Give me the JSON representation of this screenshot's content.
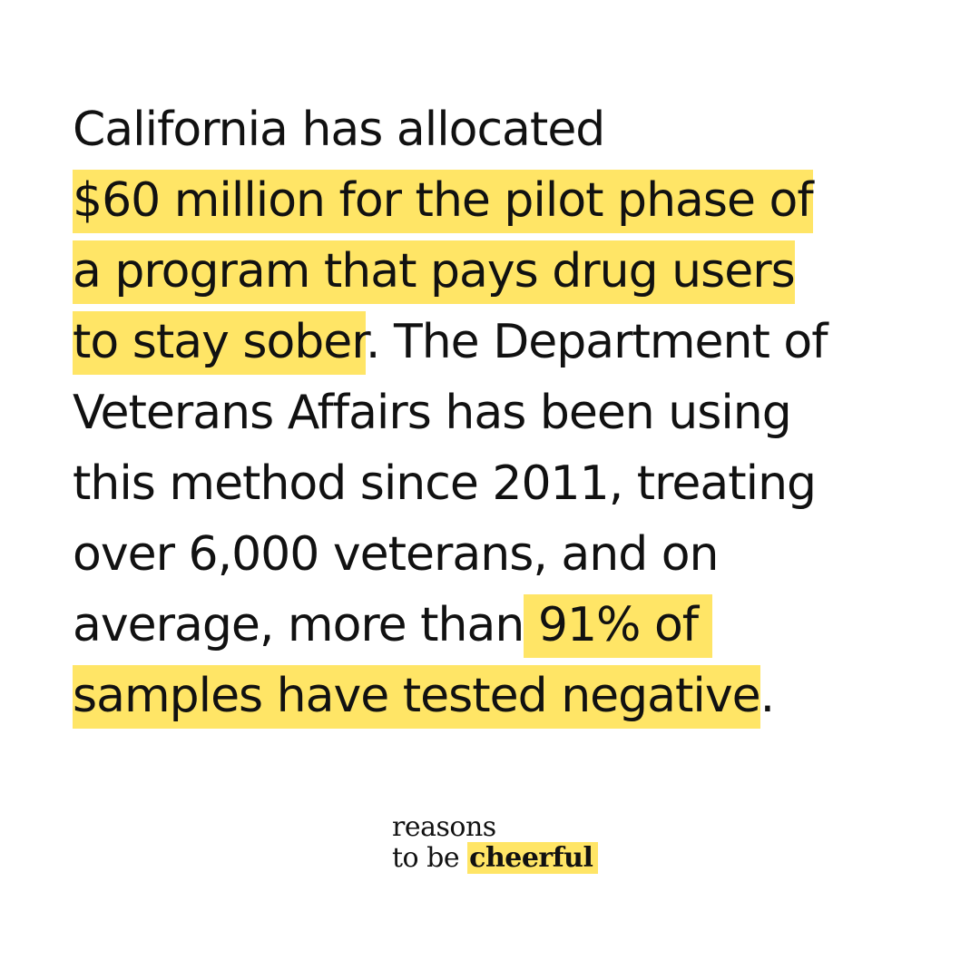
{
  "colors": {
    "background": "#ffffff",
    "text": "#111111",
    "highlight": "#ffe566"
  },
  "body": {
    "lines": [
      {
        "segments": [
          {
            "text": "California has allocated",
            "highlight": false
          }
        ]
      },
      {
        "segments": [
          {
            "text": "$60 million for the pilot phase of",
            "highlight": true
          }
        ]
      },
      {
        "segments": [
          {
            "text": "a program that pays drug users",
            "highlight": true
          }
        ]
      },
      {
        "segments": [
          {
            "text": "to stay sober",
            "highlight": true
          },
          {
            "text": ". The Department of",
            "highlight": false
          }
        ]
      },
      {
        "segments": [
          {
            "text": "Veterans Affairs has been using",
            "highlight": false
          }
        ]
      },
      {
        "segments": [
          {
            "text": "this method since 2011, treating",
            "highlight": false
          }
        ]
      },
      {
        "segments": [
          {
            "text": "over 6,000 veterans, and on",
            "highlight": false
          }
        ]
      },
      {
        "segments": [
          {
            "text": "average, more than",
            "highlight": false
          },
          {
            "text": " 91% of ",
            "highlight": true
          }
        ]
      },
      {
        "segments": [
          {
            "text": "samples have tested negative",
            "highlight": true
          },
          {
            "text": ".",
            "highlight": false
          }
        ]
      }
    ]
  },
  "logo": {
    "word1": "reasons",
    "word2": "to be",
    "word3": "cheerful"
  }
}
